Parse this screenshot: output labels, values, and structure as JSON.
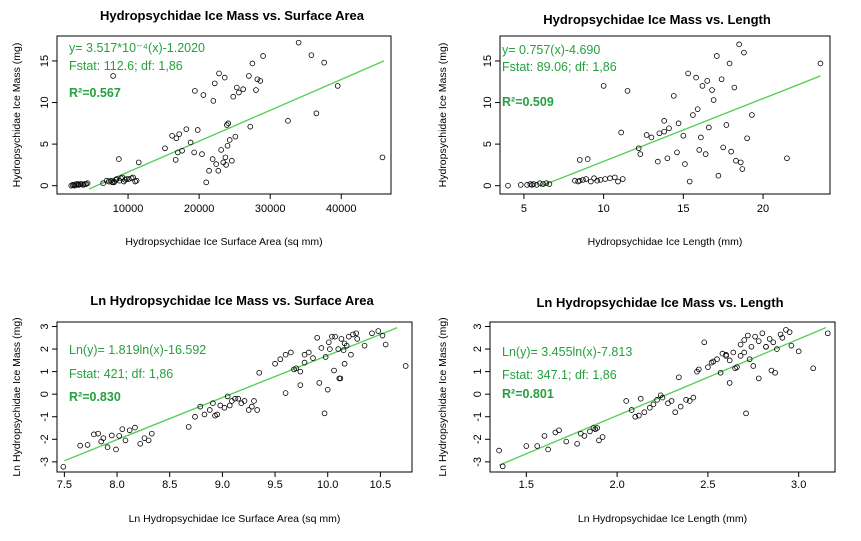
{
  "chart_data": [
    {
      "type": "scatter",
      "title": "Hydropsychidae Ice Mass vs. Surface Area",
      "xlabel": "Hydropsychidae Ice Surface Area (sq mm)",
      "ylabel": "Hydropsychidae Ice Mass (mg)",
      "xlim": [
        0,
        47000
      ],
      "ylim": [
        -1,
        18
      ],
      "x_ticks": [
        10000,
        20000,
        30000,
        40000
      ],
      "y_ticks": [
        0,
        5,
        10,
        15
      ],
      "x_tick_labels": [
        "10000",
        "20000",
        "30000",
        "40000"
      ],
      "y_tick_labels": [
        "0",
        "5",
        "10",
        "15"
      ],
      "annotations": [
        "y= 3.517*10⁻⁴(x)-1.2020",
        "Fstat: 112.6; df: 1,86",
        "R²=0.567"
      ],
      "fit_line": {
        "x": [
          4500,
          46000
        ],
        "y": [
          -0.4,
          15.0
        ]
      },
      "point_color": "#000000",
      "line_color": "#5ad05a",
      "annotation_color": "#27a03f",
      "x": [
        2000,
        2200,
        2400,
        2500,
        2700,
        2900,
        3000,
        3100,
        3300,
        3500,
        3700,
        3900,
        4100,
        4300,
        6500,
        7000,
        7300,
        7600,
        8000,
        8300,
        8800,
        9000,
        9400,
        9800,
        10100,
        10500,
        11000,
        11200,
        7800,
        8100,
        8400,
        9200,
        9600,
        10700,
        15200,
        16200,
        16800,
        17200,
        17600,
        18200,
        18800,
        19300,
        19800,
        20400,
        21000,
        21400,
        21900,
        22400,
        22700,
        23100,
        23400,
        23700,
        24000,
        24300,
        24600,
        25100,
        25600,
        26200,
        27000,
        27500,
        28000,
        28600,
        29000,
        22800,
        23600,
        23900,
        24800,
        25300,
        22200,
        22000,
        32500,
        34000,
        35800,
        36500,
        37600,
        39500,
        45800,
        19400,
        20600,
        24100,
        7900,
        8700,
        16700,
        17000,
        23800,
        27200,
        28200,
        11500
      ],
      "y": [
        0.0,
        0.1,
        0.1,
        0.0,
        0.2,
        0.1,
        0.2,
        0.1,
        0.2,
        0.2,
        0.1,
        0.2,
        0.2,
        0.3,
        0.3,
        0.6,
        0.5,
        0.6,
        0.4,
        0.7,
        0.6,
        0.9,
        0.5,
        0.8,
        0.8,
        0.9,
        0.5,
        0.6,
        0.4,
        0.5,
        0.8,
        1.0,
        0.7,
        1.0,
        4.5,
        6.0,
        5.7,
        6.2,
        4.2,
        6.8,
        5.2,
        4.0,
        6.7,
        3.8,
        0.4,
        1.8,
        3.2,
        2.6,
        1.8,
        4.3,
        2.8,
        3.4,
        4.8,
        5.5,
        3.0,
        5.9,
        11.2,
        11.6,
        13.2,
        14.7,
        11.5,
        12.6,
        15.6,
        13.5,
        13.0,
        7.3,
        10.7,
        11.8,
        12.3,
        10.2,
        7.8,
        17.2,
        15.7,
        8.7,
        14.8,
        12.0,
        3.4,
        11.4,
        10.9,
        7.5,
        13.2,
        3.2,
        3.1,
        4.0,
        2.5,
        7.1,
        12.8,
        2.8
      ]
    },
    {
      "type": "scatter",
      "title": "Hydropsychidae Ice Mass vs. Length",
      "xlabel": "Hydropsychidae Ice Length (mm)",
      "ylabel": "Hydropsychidae Ice Mass (mg)",
      "xlim": [
        3.5,
        24.2
      ],
      "ylim": [
        -1,
        18
      ],
      "x_ticks": [
        5,
        10,
        15,
        20
      ],
      "y_ticks": [
        0,
        5,
        10,
        15
      ],
      "x_tick_labels": [
        "5",
        "10",
        "15",
        "20"
      ],
      "y_tick_labels": [
        "0",
        "5",
        "10",
        "15"
      ],
      "annotations": [
        "y= 0.757(x)-4.690",
        "Fstat: 89.06; df: 1,86",
        "R²=0.509"
      ],
      "fit_line": {
        "x": [
          6.0,
          23.6
        ],
        "y": [
          -0.1,
          13.2
        ]
      },
      "point_color": "#000000",
      "line_color": "#5ad05a",
      "annotation_color": "#27a03f",
      "x": [
        4.0,
        4.8,
        5.2,
        5.4,
        5.5,
        5.6,
        5.8,
        6.0,
        6.2,
        6.4,
        6.6,
        8.2,
        8.4,
        8.5,
        8.7,
        8.9,
        9.2,
        9.4,
        9.6,
        9.8,
        10.1,
        10.4,
        10.7,
        10.9,
        11.2,
        9.0,
        11.5,
        12.2,
        13.0,
        13.5,
        13.8,
        14.1,
        14.4,
        14.7,
        15.1,
        15.4,
        15.6,
        15.9,
        16.2,
        16.5,
        16.8,
        17.1,
        17.4,
        17.7,
        17.9,
        18.2,
        18.5,
        18.8,
        19.0,
        15.3,
        15.8,
        16.4,
        16.9,
        14.0,
        17.5,
        18.0,
        18.3,
        18.6,
        13.8,
        12.7,
        16.0,
        16.6,
        19.3,
        23.6,
        21.5,
        12.3,
        11.1,
        8.5,
        10.0,
        14.6,
        17.2,
        13.4,
        15.0,
        16.1,
        18.7
      ],
      "y": [
        0.0,
        0.1,
        0.1,
        0.2,
        0.1,
        0.2,
        0.1,
        0.3,
        0.2,
        0.3,
        0.2,
        0.6,
        0.5,
        0.6,
        0.7,
        0.8,
        0.5,
        0.9,
        0.6,
        0.7,
        0.8,
        0.9,
        1.0,
        0.5,
        0.8,
        3.2,
        11.4,
        4.5,
        5.8,
        6.3,
        7.8,
        6.9,
        10.8,
        7.5,
        2.6,
        0.5,
        8.5,
        9.2,
        12.0,
        12.6,
        11.5,
        15.6,
        12.8,
        7.3,
        14.7,
        11.8,
        17.0,
        16.0,
        5.7,
        13.5,
        13.0,
        3.8,
        10.3,
        3.3,
        4.6,
        4.1,
        3.0,
        2.8,
        6.5,
        6.1,
        4.3,
        7.0,
        8.5,
        14.7,
        3.3,
        3.8,
        6.4,
        3.1,
        12.0,
        4.0,
        1.2,
        2.9,
        6.0,
        5.8,
        2.0
      ]
    },
    {
      "type": "scatter",
      "title": "Ln Hydropsychidae Ice Mass vs. Surface Area",
      "xlabel": "Ln Hydropsychidae Ice Surface Area (sq mm)",
      "ylabel": "Ln Hydropsychidae Ice Mass (mg)",
      "xlim": [
        7.43,
        10.8
      ],
      "ylim": [
        -3.45,
        3.2
      ],
      "x_ticks": [
        7.5,
        8.0,
        8.5,
        9.0,
        9.5,
        10.0,
        10.5
      ],
      "y_ticks": [
        -3,
        -2,
        -1,
        0,
        1,
        2,
        3
      ],
      "x_tick_labels": [
        "7.5",
        "8.0",
        "8.5",
        "9.0",
        "9.5",
        "10.0",
        "10.5"
      ],
      "y_tick_labels": [
        "-3",
        "-2",
        "-1",
        "0",
        "1",
        "2",
        "3"
      ],
      "annotations": [
        "Ln(y)= 1.819ln(x)-16.592",
        "Fstat: 421; df: 1,86",
        "R²=0.830"
      ],
      "fit_line": {
        "x": [
          7.5,
          10.66
        ],
        "y": [
          -2.95,
          2.95
        ]
      },
      "point_color": "#000000",
      "line_color": "#5ad05a",
      "annotation_color": "#27a03f",
      "x": [
        7.49,
        7.65,
        7.72,
        7.78,
        7.82,
        7.85,
        7.87,
        7.91,
        7.95,
        7.99,
        8.02,
        8.05,
        8.08,
        8.12,
        8.17,
        8.22,
        8.26,
        8.3,
        8.33,
        8.68,
        8.74,
        8.79,
        8.83,
        8.88,
        8.91,
        8.95,
        8.98,
        9.02,
        9.05,
        9.07,
        9.09,
        9.12,
        9.15,
        9.18,
        9.21,
        9.25,
        9.28,
        9.3,
        9.33,
        8.93,
        9.35,
        9.5,
        9.55,
        9.6,
        9.65,
        9.7,
        9.74,
        9.78,
        9.82,
        9.86,
        9.9,
        9.94,
        9.98,
        10.01,
        10.04,
        10.07,
        10.1,
        10.13,
        10.16,
        10.2,
        10.24,
        10.28,
        10.35,
        10.42,
        10.48,
        10.52,
        10.55,
        10.74,
        9.78,
        9.92,
        9.97,
        10.0,
        10.06,
        10.11,
        10.16,
        10.22,
        10.27,
        10.15,
        10.02,
        9.6,
        9.74,
        9.68,
        10.12,
        10.18
      ],
      "y": [
        -3.22,
        -2.28,
        -2.25,
        -1.78,
        -1.75,
        -2.1,
        -1.95,
        -2.35,
        -1.83,
        -2.45,
        -1.85,
        -1.55,
        -2.05,
        -1.6,
        -1.48,
        -2.2,
        -1.95,
        -2.05,
        -1.75,
        -1.45,
        -1.0,
        -0.55,
        -0.9,
        -0.7,
        -0.4,
        -0.9,
        -0.5,
        -0.6,
        -0.1,
        -0.5,
        -0.3,
        -0.2,
        -0.2,
        -0.4,
        -0.3,
        -0.7,
        -0.55,
        -0.3,
        -0.7,
        -0.95,
        0.95,
        1.35,
        1.55,
        1.75,
        1.85,
        1.15,
        1.0,
        1.4,
        1.85,
        1.6,
        2.5,
        2.05,
        1.65,
        2.3,
        2.55,
        2.55,
        2.0,
        2.45,
        2.25,
        2.55,
        2.65,
        2.45,
        2.15,
        2.7,
        2.8,
        2.6,
        2.2,
        1.25,
        1.75,
        0.5,
        -0.85,
        0.2,
        1.05,
        0.7,
        1.35,
        1.75,
        2.7,
        1.95,
        2.0,
        0.05,
        0.4,
        1.1,
        0.7,
        2.15
      ]
    },
    {
      "type": "scatter",
      "title": "Ln Hydropsychidae Ice Mass vs. Length",
      "xlabel": "Ln Hydropsychidae Ice Length (mm)",
      "ylabel": "Ln Hydropsychidae Ice Mass (mg)",
      "xlim": [
        1.3,
        3.2
      ],
      "ylim": [
        -3.45,
        3.2
      ],
      "x_ticks": [
        1.5,
        2.0,
        2.5,
        3.0
      ],
      "y_ticks": [
        -3,
        -2,
        -1,
        0,
        1,
        2,
        3
      ],
      "x_tick_labels": [
        "1.5",
        "2.0",
        "2.5",
        "3.0"
      ],
      "y_tick_labels": [
        "-3",
        "-2",
        "-1",
        "0",
        "1",
        "2",
        "3"
      ],
      "annotations": [
        "Ln(y)= 3.455ln(x)-7.813",
        "Fstat: 347.1; df: 1,86",
        "R²=0.801"
      ],
      "fit_line": {
        "x": [
          1.35,
          3.15
        ],
        "y": [
          -3.15,
          2.95
        ]
      },
      "point_color": "#000000",
      "line_color": "#5ad05a",
      "annotation_color": "#27a03f",
      "x": [
        1.35,
        1.37,
        1.5,
        1.56,
        1.6,
        1.62,
        1.66,
        1.68,
        1.72,
        1.78,
        1.82,
        1.85,
        1.88,
        1.9,
        1.92,
        1.8,
        1.87,
        1.89,
        2.05,
        2.08,
        2.1,
        2.12,
        2.15,
        2.18,
        2.2,
        2.22,
        2.25,
        2.28,
        2.3,
        2.32,
        2.35,
        2.38,
        2.4,
        2.42,
        2.13,
        2.24,
        2.34,
        2.45,
        2.5,
        2.53,
        2.55,
        2.58,
        2.6,
        2.62,
        2.64,
        2.66,
        2.68,
        2.7,
        2.72,
        2.74,
        2.76,
        2.78,
        2.8,
        2.82,
        2.84,
        2.86,
        2.88,
        2.9,
        2.93,
        2.96,
        3.0,
        3.08,
        3.16,
        2.71,
        2.78,
        2.85,
        2.87,
        2.62,
        2.65,
        2.7,
        2.48,
        2.75,
        2.82,
        2.95,
        2.57,
        2.73,
        2.91,
        2.6,
        2.44,
        2.52,
        2.68
      ],
      "y": [
        -2.5,
        -3.2,
        -2.3,
        -2.3,
        -1.85,
        -2.45,
        -1.7,
        -1.6,
        -2.1,
        -2.2,
        -1.85,
        -1.65,
        -1.55,
        -2.05,
        -1.9,
        -1.75,
        -1.5,
        -1.5,
        -0.3,
        -0.7,
        -1.0,
        -0.95,
        -0.8,
        -0.6,
        -0.45,
        -0.25,
        -0.15,
        -0.4,
        -0.3,
        -0.8,
        -0.55,
        -0.25,
        -0.3,
        -0.15,
        -0.2,
        -0.05,
        0.75,
        1.1,
        1.2,
        1.45,
        1.55,
        1.8,
        1.75,
        1.5,
        1.85,
        1.2,
        2.2,
        2.4,
        2.6,
        2.1,
        2.55,
        2.35,
        2.7,
        2.1,
        2.45,
        2.3,
        2.0,
        2.65,
        2.85,
        2.15,
        1.9,
        1.15,
        2.7,
        -0.85,
        0.7,
        1.05,
        0.95,
        0.5,
        1.15,
        1.85,
        2.3,
        1.25,
        2.1,
        2.75,
        0.95,
        1.55,
        2.5,
        1.7,
        1.0,
        1.4,
        1.7
      ]
    }
  ]
}
